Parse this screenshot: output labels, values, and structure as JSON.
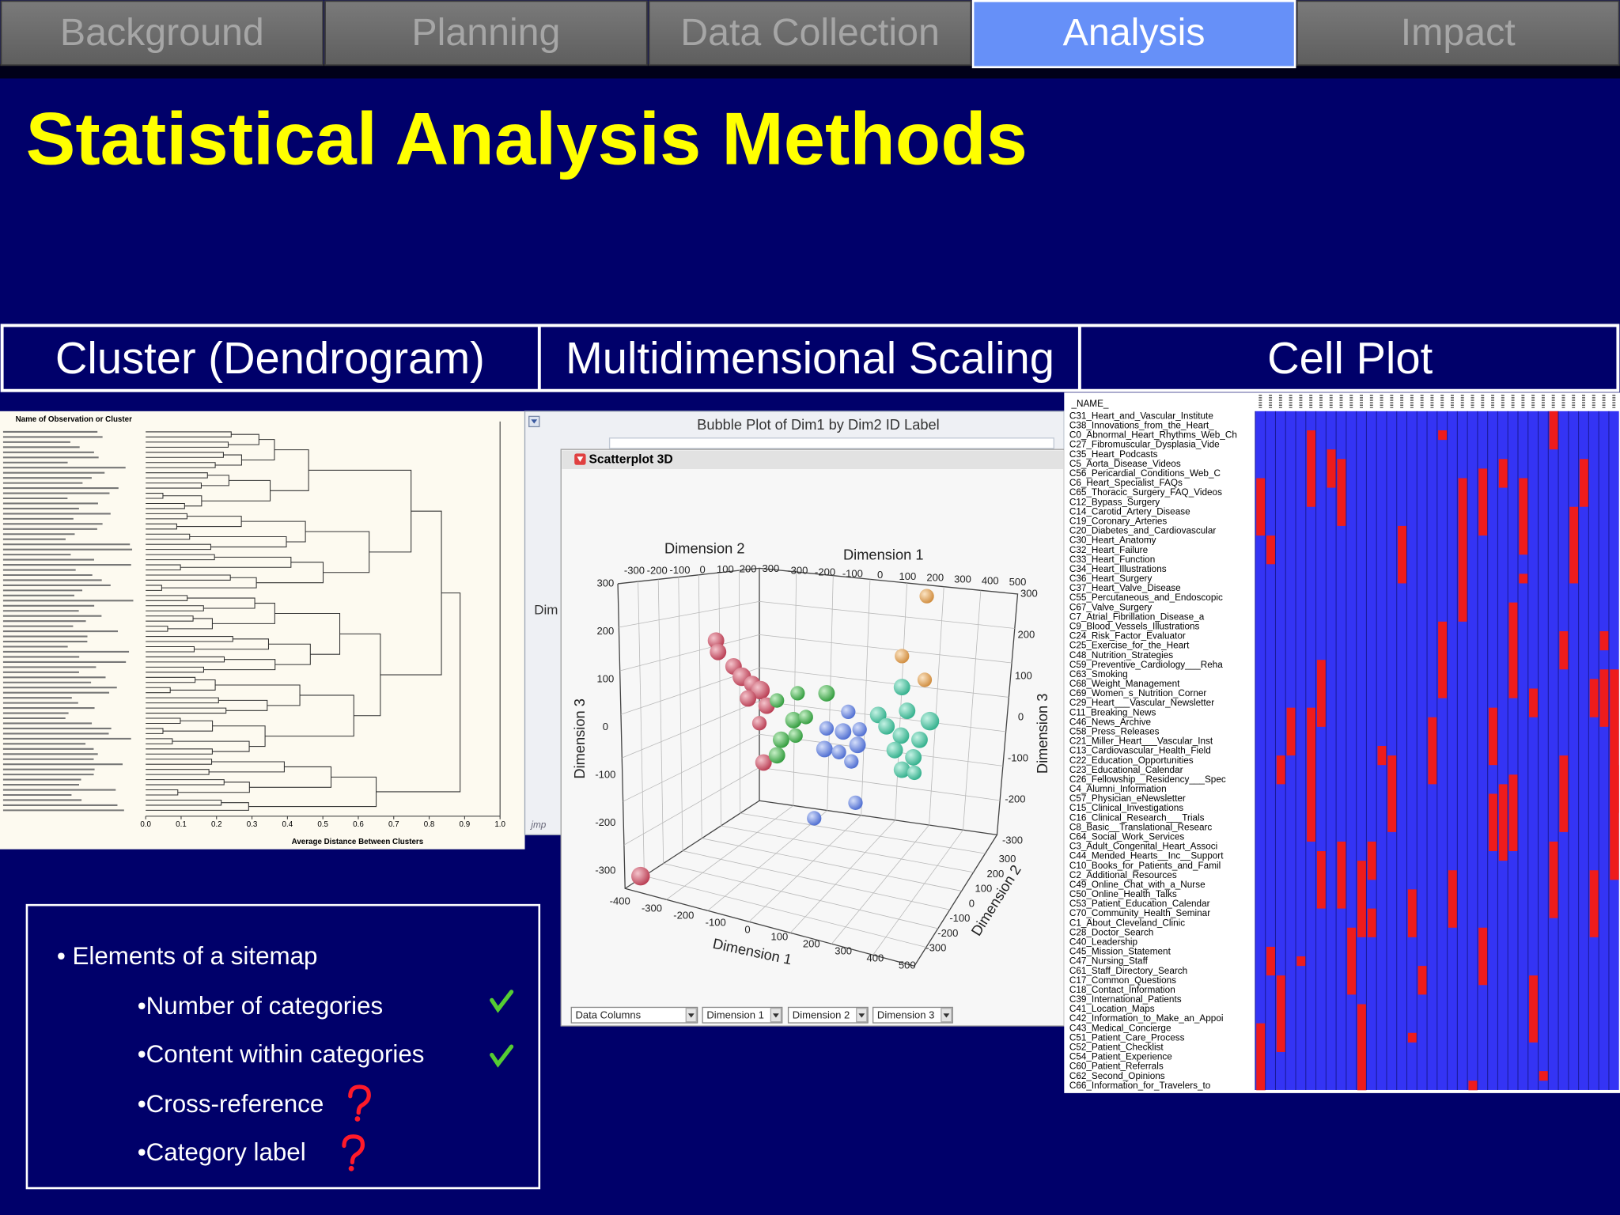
{
  "tabs": [
    "Background",
    "Planning",
    "Data Collection",
    "Analysis",
    "Impact"
  ],
  "active_tab_index": 3,
  "title": "Statistical Analysis Methods",
  "methods": [
    "Cluster (Dendrogram)",
    "Multidimensional Scaling",
    "Cell Plot"
  ],
  "dendrogram": {
    "header": "Name of Observation or Cluster",
    "axis_ticks": [
      "0.0",
      "0.1",
      "0.2",
      "0.3",
      "0.4",
      "0.5",
      "0.6",
      "0.7",
      "0.8",
      "0.9",
      "1.0"
    ],
    "axis_label": "Average Distance Between Clusters"
  },
  "mds": {
    "window_title": "Bubble Plot of Dim1 by Dim2 ID Label",
    "axis_stub": "Dim",
    "panel_title": "Scatterplot 3D",
    "labels": {
      "top_dim2": "Dimension 2",
      "top_dim1": "Dimension 1",
      "left_dim3": "Dimension 3",
      "right_dim3": "Dimension 3",
      "bottom_dim1": "Dimension 1",
      "bottom_dim2": "Dimension 2"
    },
    "ticks": {
      "top_dim2": [
        "-300",
        "-200",
        "-100",
        "0",
        "100",
        "200",
        "300"
      ],
      "top_dim1": [
        "-300",
        "-200",
        "-100",
        "0",
        "100",
        "200",
        "300",
        "400",
        "500"
      ],
      "left": [
        "300",
        "200",
        "100",
        "0",
        "-100",
        "-200",
        "-300"
      ],
      "right": [
        "300",
        "200",
        "100",
        "0",
        "-100",
        "-200",
        "-300"
      ],
      "bottom_dim1": [
        "-400",
        "-300",
        "-200",
        "-100",
        "0",
        "100",
        "200",
        "300",
        "400",
        "500"
      ],
      "bottom_dim2": [
        "300",
        "200",
        "100",
        "0",
        "-100",
        "-200",
        "-300"
      ]
    },
    "controls": [
      "Data Columns",
      "Dimension 1",
      "Dimension 2",
      "Dimension 3"
    ],
    "logo": "jmp"
  },
  "cell_plot": {
    "header": "_NAME_",
    "names": [
      "C31_Heart_and_Vascular_Institute",
      "C38_Innovations_from_the_Heart_",
      "C0_Abnormal_Heart_Rhythms_Web_Ch",
      "C27_Fibromuscular_Dysplasia_Vide",
      "C35_Heart_Podcasts",
      "C5_Aorta_Disease_Videos",
      "C56_Pericardial_Conditions_Web_C",
      "C6_Heart_Specialist_FAQs",
      "C65_Thoracic_Surgery_FAQ_Videos",
      "C12_Bypass_Surgery",
      "C14_Carotid_Artery_Disease",
      "C19_Coronary_Arteries",
      "C20_Diabetes_and_Cardiovascular",
      "C30_Heart_Anatomy",
      "C32_Heart_Failure",
      "C33_Heart_Function",
      "C34_Heart_Illustrations",
      "C36_Heart_Surgery",
      "C37_Heart_Valve_Disease",
      "C55_Percutaneous_and_Endoscopic",
      "C67_Valve_Surgery",
      "C7_Atrial_Fibrillation_Disease_a",
      "C9_Blood_Vessels_Illustrations",
      "C24_Risk_Factor_Evaluator",
      "C25_Exercise_for_the_Heart",
      "C48_Nutrition_Strategies",
      "C59_Preventive_Cardiology___Reha",
      "C63_Smoking",
      "C68_Weight_Management",
      "C69_Women_s_Nutrition_Corner",
      "C29_Heart___Vascular_Newsletter",
      "C11_Breaking_News",
      "C46_News_Archive",
      "C58_Press_Releases",
      "C21_Miller_Heart___Vascular_Inst",
      "C13_Cardiovascular_Health_Field",
      "C22_Education_Opportunities",
      "C23_Educational_Calendar",
      "C26_Fellowship__Residency___Spec",
      "C4_Alumni_Information",
      "C57_Physician_eNewsletter",
      "C15_Clinical_Investigations",
      "C16_Clinical_Research___Trials",
      "C8_Basic__Translational_Researc",
      "C64_Social_Work_Services",
      "C3_Adult_Congenital_Heart_Associ",
      "C44_Mended_Hearts__Inc__Support",
      "C10_Books_for_Patients_and_Famil",
      "C2_Additional_Resources",
      "C49_Online_Chat_with_a_Nurse",
      "C50_Online_Health_Talks",
      "C53_Patient_Education_Calendar",
      "C70_Community_Health_Seminar",
      "C1_About_Cleveland_Clinic",
      "C28_Doctor_Search",
      "C40_Leadership",
      "C45_Mission_Statement",
      "C47_Nursing_Staff",
      "C61_Staff_Directory_Search",
      "C17_Common_Questions",
      "C18_Contact_Information",
      "C39_International_Patients",
      "C41_Location_Maps",
      "C42_Information_to_Make_an_Appoi",
      "C43_Medical_Concierge",
      "C51_Patient_Care_Process",
      "C52_Patient_Checklist",
      "C54_Patient_Experience",
      "C60_Patient_Referrals",
      "C62_Second_Opinions",
      "C66_Information_for_Travelers_to"
    ]
  },
  "notes": {
    "heading": "• Elements of a sitemap",
    "items": [
      "•Number of categories",
      "•Content within categories",
      "•Cross-reference",
      "•Category label"
    ]
  }
}
